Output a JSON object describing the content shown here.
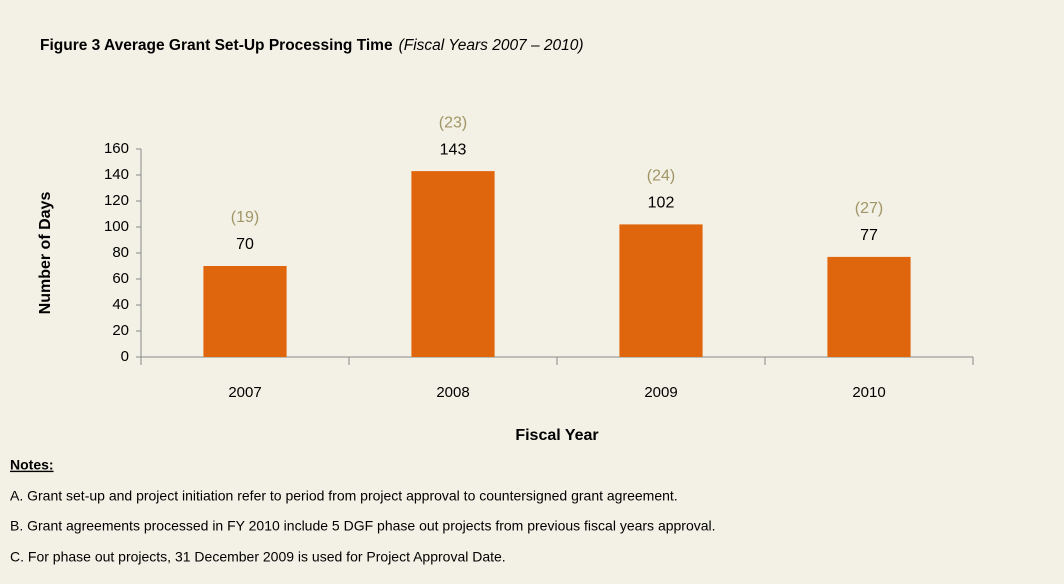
{
  "chart_data": {
    "type": "bar",
    "title": "Figure 3   Average Grant Set-Up Processing Time",
    "subtitle": "(Fiscal Years 2007 – 2010)",
    "x_label": "Fiscal Year",
    "y_label": "Number of Days",
    "categories": [
      "2007",
      "2008",
      "2009",
      "2010"
    ],
    "values": [
      70,
      143,
      102,
      77
    ],
    "annotations": [
      "(19)",
      "(23)",
      "(24)",
      "(27)"
    ],
    "color": "#e0660e",
    "ylim": [
      0,
      160
    ],
    "yticks": [
      0,
      20,
      40,
      60,
      80,
      100,
      120,
      140,
      160
    ],
    "grid": false
  },
  "notes": {
    "heading": "Notes:",
    "items": [
      "A. Grant set-up and project initiation refer to period from project approval to countersigned grant agreement.",
      "B. Grant agreements processed in FY 2010 include 5 DGF phase out projects from previous fiscal years approval.",
      "C. For phase out projects, 31 December 2009 is used for Project Approval Date."
    ]
  }
}
